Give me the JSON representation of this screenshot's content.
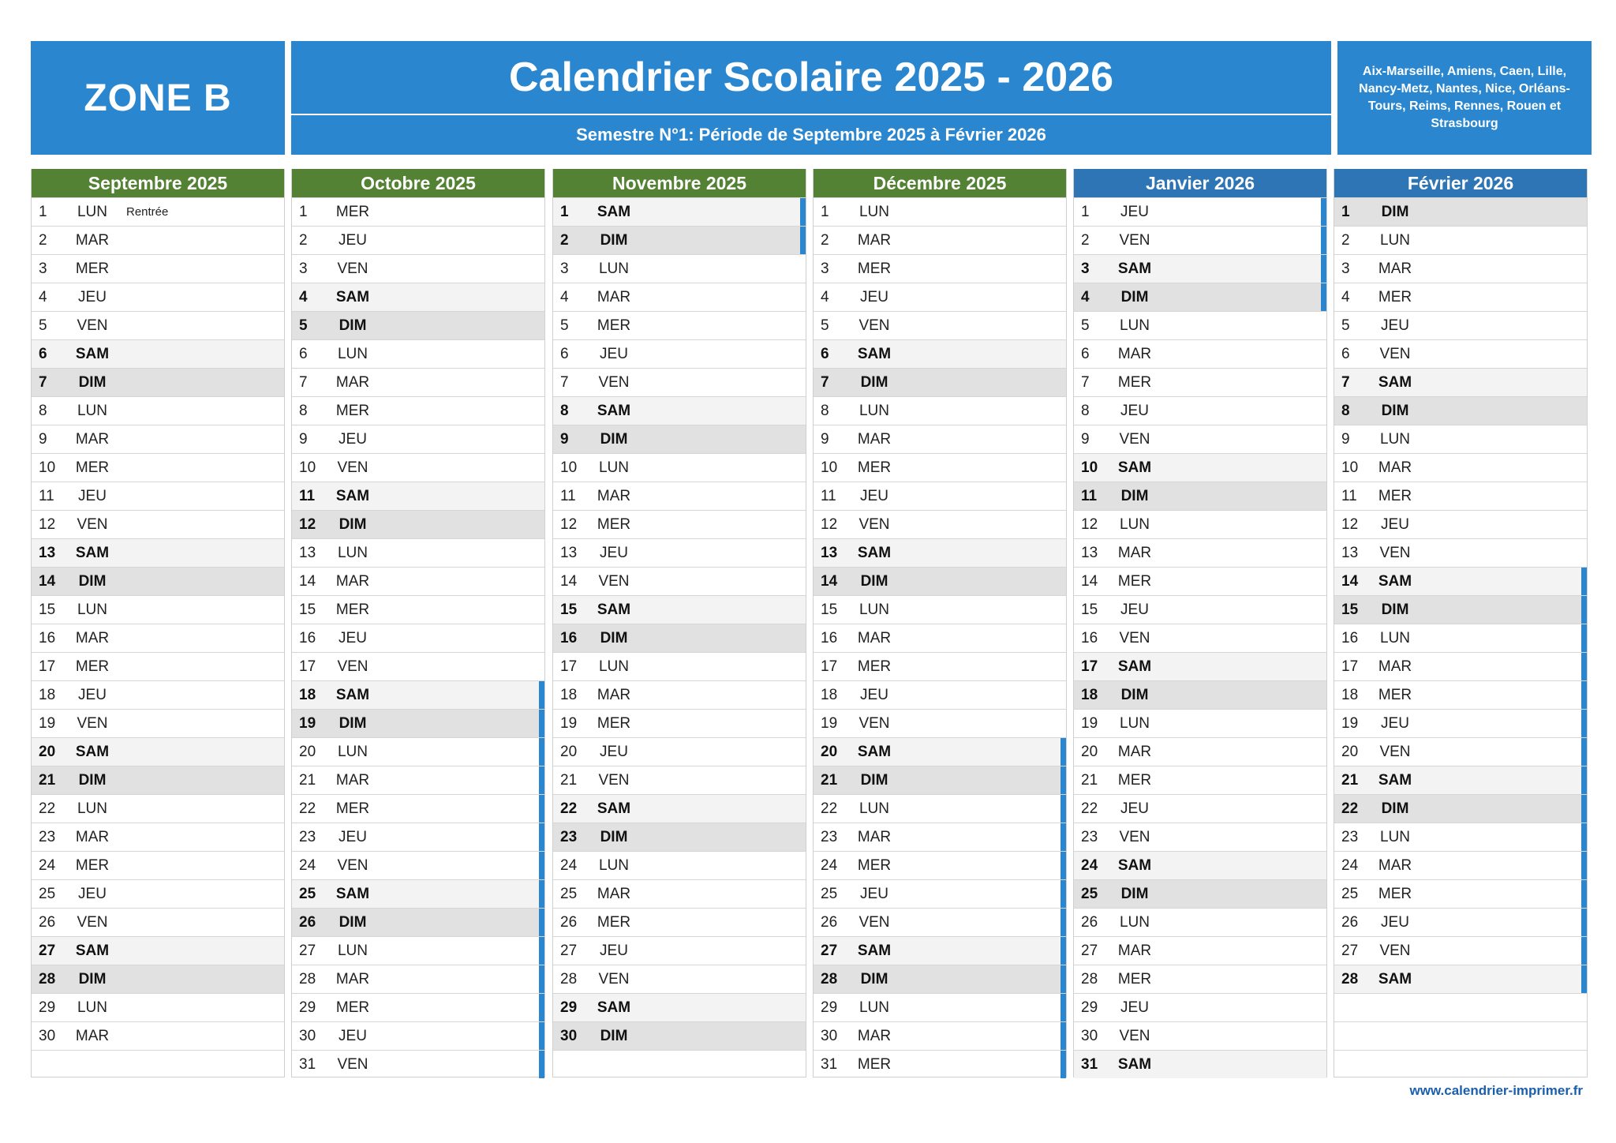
{
  "zone": "ZONE B",
  "title": "Calendrier Scolaire 2025 - 2026",
  "subtitle": "Semestre N°1: Période de Septembre 2025 à Février 2026",
  "regions": "Aix-Marseille, Amiens, Caen, Lille, Nancy-Metz, Nantes, Nice, Orléans-Tours, Reims, Rennes, Rouen et Strasbourg",
  "footer": "www.calendrier-imprimer.fr",
  "colors": {
    "brand_blue": "#2a87cf",
    "header_green": "#548235",
    "header_blue": "#2e75b6",
    "vacation_bar": "#2a87cf"
  },
  "months": [
    {
      "name": "Septembre 2025",
      "days_in_month": 30,
      "first_weekday": 0,
      "header_color": "#548235",
      "vacation_days": [],
      "notes": {
        "1": "Rentrée"
      }
    },
    {
      "name": "Octobre 2025",
      "days_in_month": 31,
      "first_weekday": 2,
      "header_color": "#548235",
      "vacation_days": [
        18,
        19,
        20,
        21,
        22,
        23,
        24,
        25,
        26,
        27,
        28,
        29,
        30,
        31
      ],
      "notes": {}
    },
    {
      "name": "Novembre 2025",
      "days_in_month": 30,
      "first_weekday": 5,
      "header_color": "#548235",
      "vacation_days": [
        1,
        2
      ],
      "notes": {}
    },
    {
      "name": "Décembre 2025",
      "days_in_month": 31,
      "first_weekday": 0,
      "header_color": "#548235",
      "vacation_days": [
        20,
        21,
        22,
        23,
        24,
        25,
        26,
        27,
        28,
        29,
        30,
        31
      ],
      "notes": {}
    },
    {
      "name": "Janvier 2026",
      "days_in_month": 31,
      "first_weekday": 3,
      "header_color": "#2e75b6",
      "vacation_days": [
        1,
        2,
        3,
        4
      ],
      "notes": {}
    },
    {
      "name": "Février 2026",
      "days_in_month": 28,
      "first_weekday": 6,
      "header_color": "#2e75b6",
      "vacation_days": [
        14,
        15,
        16,
        17,
        18,
        19,
        20,
        21,
        22,
        23,
        24,
        25,
        26,
        27,
        28
      ],
      "notes": {}
    }
  ],
  "weekday_names": [
    "LUN",
    "MAR",
    "MER",
    "JEU",
    "VEN",
    "SAM",
    "DIM"
  ]
}
